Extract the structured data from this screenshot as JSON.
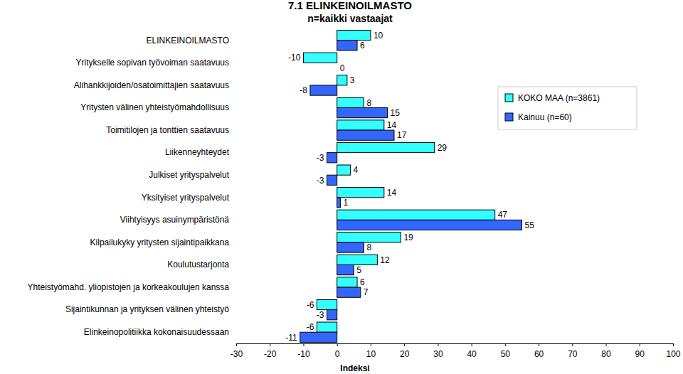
{
  "chart_data": {
    "type": "bar",
    "orientation": "horizontal",
    "title": "7.1 ELINKEINOILMASTO",
    "subtitle": "n=kaikki vastaajat",
    "xlabel": "Indeksi",
    "categories": [
      "ELINKEINOILMASTO",
      "Yritykselle sopivan työvoiman saatavuus",
      "Alihankkijoiden/osatoimittajien saatavuus",
      "Yritysten välinen yhteistyömahdollisuus",
      "Toimitilojen ja tonttien saatavuus",
      "Liikenneyhteydet",
      "Julkiset yrityspalvelut",
      "Yksityiset yrityspalvelut",
      "Viihtyisyys asuinympäristönä",
      "Kilpailukyky yritysten sijaintipaikkana",
      "Koulutustarjonta",
      "Yhteistyömahd. yliopistojen ja korkeakoulujen kanssa",
      "Sijaintikunnan ja yrityksen välinen yhteistyö",
      "Elinkeinopolitiikka kokonaisuudessaan"
    ],
    "series": [
      {
        "name": "KOKO MAA (n=3861)",
        "color": "#33ffff",
        "values": [
          10,
          -10,
          3,
          8,
          14,
          29,
          4,
          14,
          47,
          19,
          12,
          6,
          -6,
          -6
        ]
      },
      {
        "name": "Kainuu (n=60)",
        "color": "#3366ff",
        "values": [
          6,
          0,
          -8,
          15,
          17,
          -3,
          -3,
          1,
          55,
          8,
          5,
          7,
          -3,
          -11
        ]
      }
    ],
    "xlim": [
      -30,
      100
    ],
    "xticks": [
      -30,
      -20,
      -10,
      0,
      10,
      20,
      30,
      40,
      50,
      60,
      70,
      80,
      90,
      100
    ],
    "data_labels": true,
    "legend": "upper right",
    "grid": false
  }
}
